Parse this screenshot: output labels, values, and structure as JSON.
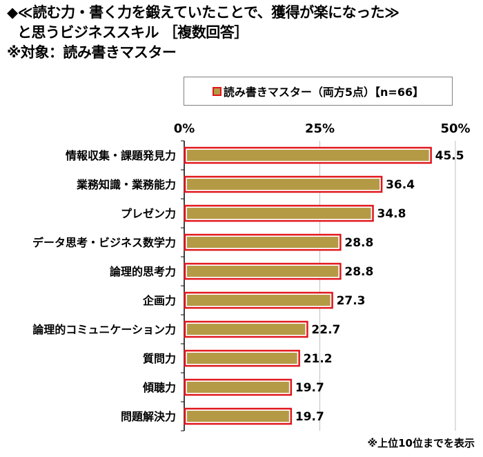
{
  "title_lines": [
    "◆≪読む力・書く力を鍛えていたことで、獲得が楽になった≫",
    "と思うビジネススキル ［複数回答］",
    "※対象：読み書きマスター"
  ],
  "footnote": "※上位10位までを表示",
  "colors": {
    "bar_fill": "#b59a45",
    "bar_border": "#e0161b",
    "grid": "#bfbfbf",
    "axis": "#000000"
  },
  "chart_data": {
    "type": "bar",
    "orientation": "horizontal",
    "legend": {
      "entries": [
        "読み書きマスター（両方5点）【n=66】"
      ],
      "placement": "top"
    },
    "categories": [
      "情報収集・課題発見力",
      "業務知識・業務能力",
      "プレゼン力",
      "データ思考・ビジネス数学力",
      "論理的思考力",
      "企画力",
      "論理的コミュニケーション力",
      "質問力",
      "傾聴力",
      "問題解決力"
    ],
    "series": [
      {
        "name": "読み書きマスター（両方5点）【n=66】",
        "values": [
          45.5,
          36.4,
          34.8,
          28.8,
          28.8,
          27.3,
          22.7,
          21.2,
          19.7,
          19.7
        ]
      }
    ],
    "value_labels": [
      "45.5",
      "36.4",
      "34.8",
      "28.8",
      "28.8",
      "27.3",
      "22.7",
      "21.2",
      "19.7",
      "19.7"
    ],
    "xlim": [
      0,
      50
    ],
    "ticks": [
      0,
      25,
      50
    ],
    "tick_labels": [
      "0%",
      "25%",
      "50%"
    ],
    "grid": true
  }
}
